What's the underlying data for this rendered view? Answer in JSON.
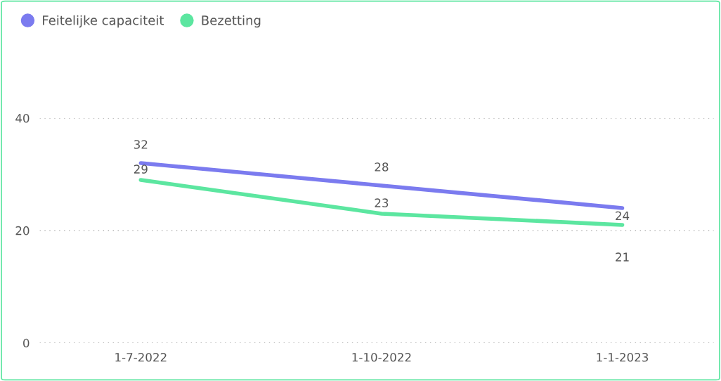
{
  "chart_data": {
    "type": "line",
    "categories": [
      "1-7-2022",
      "1-10-2022",
      "1-1-2023"
    ],
    "series": [
      {
        "name": "Feitelijke capaciteit",
        "color": "#7b7bef",
        "values": [
          32,
          28,
          24
        ]
      },
      {
        "name": "Bezetting",
        "color": "#5ce6a0",
        "values": [
          29,
          23,
          21
        ]
      }
    ],
    "ylim": [
      0,
      40
    ],
    "yticks": [
      0,
      20,
      40
    ],
    "grid": "y",
    "legend": "top left",
    "data_labels": true,
    "marker": "none",
    "line_style": "solid"
  }
}
